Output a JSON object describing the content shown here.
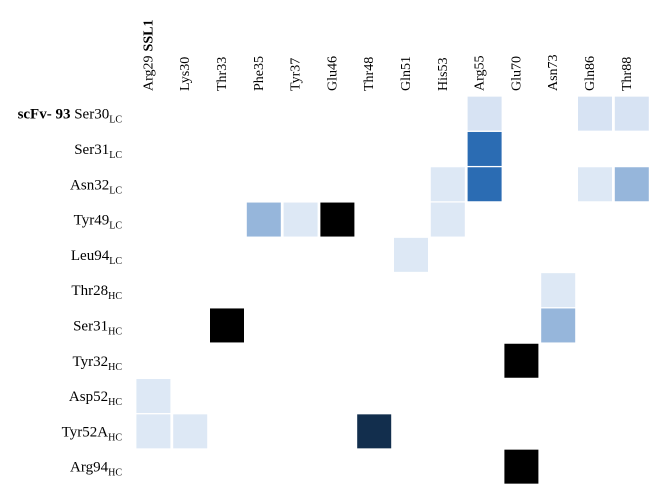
{
  "chart_data": {
    "type": "heatmap",
    "row_group_label": "scFv- 93",
    "col_group_label": "SSL1",
    "columns": [
      "Arg29",
      "Lys30",
      "Thr33",
      "Phe35",
      "Tyr37",
      "Glu46",
      "Thr48",
      "Gln51",
      "His53",
      "Arg55",
      "Glu70",
      "Asn73",
      "Gln86",
      "Thr88"
    ],
    "rows": [
      {
        "name": "Ser30",
        "chain": "LC"
      },
      {
        "name": "Ser31",
        "chain": "LC"
      },
      {
        "name": "Asn32",
        "chain": "LC"
      },
      {
        "name": "Tyr49",
        "chain": "LC"
      },
      {
        "name": "Leu94",
        "chain": "LC"
      },
      {
        "name": "Thr28",
        "chain": "HC"
      },
      {
        "name": "Ser31",
        "chain": "HC"
      },
      {
        "name": "Tyr32",
        "chain": "HC"
      },
      {
        "name": "Asp52",
        "chain": "HC"
      },
      {
        "name": "Tyr52A",
        "chain": "HC"
      },
      {
        "name": "Arg94",
        "chain": "HC"
      }
    ],
    "cells": [
      {
        "row": 0,
        "col": 9,
        "value": 0.12
      },
      {
        "row": 0,
        "col": 12,
        "value": 0.12
      },
      {
        "row": 0,
        "col": 13,
        "value": 0.12
      },
      {
        "row": 1,
        "col": 9,
        "value": 0.65
      },
      {
        "row": 2,
        "col": 8,
        "value": 0.1
      },
      {
        "row": 2,
        "col": 9,
        "value": 0.65
      },
      {
        "row": 2,
        "col": 12,
        "value": 0.1
      },
      {
        "row": 2,
        "col": 13,
        "value": 0.32
      },
      {
        "row": 3,
        "col": 3,
        "value": 0.32
      },
      {
        "row": 3,
        "col": 4,
        "value": 0.1
      },
      {
        "row": 3,
        "col": 5,
        "value": 1.0
      },
      {
        "row": 3,
        "col": 8,
        "value": 0.1
      },
      {
        "row": 4,
        "col": 7,
        "value": 0.1
      },
      {
        "row": 5,
        "col": 11,
        "value": 0.1
      },
      {
        "row": 6,
        "col": 2,
        "value": 1.0
      },
      {
        "row": 6,
        "col": 11,
        "value": 0.32
      },
      {
        "row": 7,
        "col": 10,
        "value": 1.0
      },
      {
        "row": 8,
        "col": 0,
        "value": 0.1
      },
      {
        "row": 9,
        "col": 0,
        "value": 0.1
      },
      {
        "row": 9,
        "col": 1,
        "value": 0.1
      },
      {
        "row": 9,
        "col": 6,
        "value": 0.85
      },
      {
        "row": 10,
        "col": 10,
        "value": 1.0
      }
    ],
    "color_scale": {
      "low": "#dde8f5",
      "mid": "#2b6cb3",
      "high": "#000000"
    }
  }
}
